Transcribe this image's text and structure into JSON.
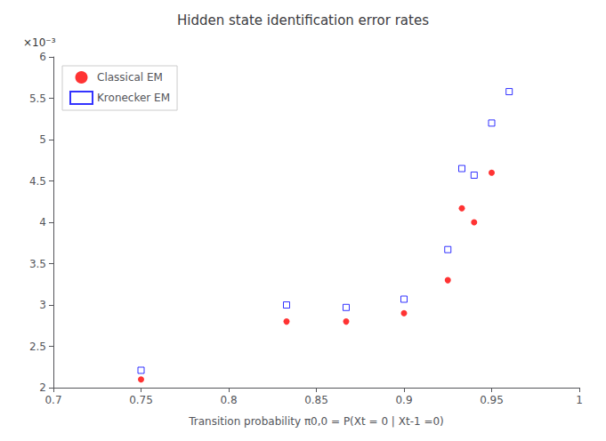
{
  "chart_data": {
    "type": "scatter",
    "title": "Hidden state identification error rates",
    "xlabel": "Transition probability π0,0 = P(Xt = 0 | Xt-1 =0)",
    "annotation": "×10⁻³",
    "xlim": [
      0.7,
      1.0
    ],
    "ylim": [
      0.002,
      0.006
    ],
    "xticks": [
      0.7,
      0.75,
      0.8,
      0.85,
      0.9,
      0.95,
      1
    ],
    "yticks": [
      {
        "value": 0.002,
        "label": "2"
      },
      {
        "value": 0.0025,
        "label": "2.5"
      },
      {
        "value": 0.003,
        "label": "3"
      },
      {
        "value": 0.0035,
        "label": "3.5"
      },
      {
        "value": 0.004,
        "label": "4"
      },
      {
        "value": 0.0045,
        "label": "4.5"
      },
      {
        "value": 0.005,
        "label": "5"
      },
      {
        "value": 0.0055,
        "label": "5.5"
      },
      {
        "value": 0.006,
        "label": "6"
      }
    ],
    "grid": false,
    "legend": "upper left",
    "series": [
      {
        "name": "Classical EM",
        "color": "#ff0000",
        "marker": "circle",
        "x": [
          0.75,
          0.833,
          0.867,
          0.9,
          0.925,
          0.933,
          0.94,
          0.95
        ],
        "values": [
          0.0021,
          0.0028,
          0.0028,
          0.0029,
          0.0033,
          0.00417,
          0.004,
          0.0046
        ]
      },
      {
        "name": "Kronecker EM",
        "color": "#0000ff",
        "marker": "square-open",
        "x": [
          0.75,
          0.833,
          0.867,
          0.9,
          0.925,
          0.933,
          0.94,
          0.95,
          0.96
        ],
        "values": [
          0.00221,
          0.003,
          0.00297,
          0.00307,
          0.00367,
          0.00465,
          0.00457,
          0.0052,
          0.00558
        ]
      }
    ]
  }
}
